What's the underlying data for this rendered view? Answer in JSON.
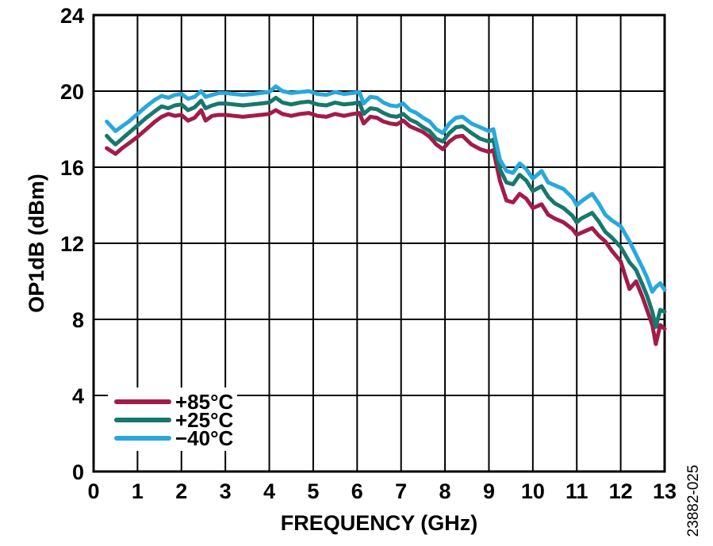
{
  "figure": {
    "background": "#ffffff",
    "watermark": "23882-025",
    "axis_color": "#000000",
    "grid_color": "#000000"
  },
  "chart_data": {
    "type": "line",
    "title": "",
    "xlabel": "FREQUENCY (GHz)",
    "ylabel": "OP1dB (dBm)",
    "xlim": [
      0,
      13
    ],
    "ylim": [
      0,
      24
    ],
    "x_ticks": [
      0,
      1,
      2,
      3,
      4,
      5,
      6,
      7,
      8,
      9,
      10,
      11,
      12,
      13
    ],
    "y_ticks": [
      0,
      4,
      8,
      12,
      16,
      20,
      24
    ],
    "grid": "on",
    "legend_position": "lower-left",
    "x": [
      0.3,
      0.4,
      0.5,
      0.65,
      0.8,
      1.0,
      1.2,
      1.4,
      1.55,
      1.7,
      1.85,
      2.0,
      2.15,
      2.3,
      2.45,
      2.55,
      2.7,
      2.85,
      3.0,
      3.2,
      3.4,
      3.6,
      3.8,
      4.0,
      4.15,
      4.3,
      4.5,
      4.7,
      4.9,
      5.1,
      5.3,
      5.5,
      5.7,
      5.9,
      6.05,
      6.15,
      6.3,
      6.45,
      6.6,
      6.75,
      6.9,
      7.05,
      7.2,
      7.35,
      7.5,
      7.65,
      7.8,
      7.95,
      8.1,
      8.25,
      8.4,
      8.6,
      8.8,
      9.0,
      9.1,
      9.25,
      9.4,
      9.55,
      9.7,
      9.85,
      10.0,
      10.2,
      10.35,
      10.5,
      10.7,
      10.9,
      11.0,
      11.1,
      11.35,
      11.5,
      11.65,
      11.8,
      12.0,
      12.1,
      12.2,
      12.35,
      12.5,
      12.6,
      12.72,
      12.8,
      12.9,
      13.0
    ],
    "series": [
      {
        "name": "+85°C",
        "color": "#A21C49",
        "values": [
          17.0,
          16.85,
          16.7,
          17.0,
          17.25,
          17.6,
          18.0,
          18.4,
          18.65,
          18.8,
          18.7,
          18.75,
          18.45,
          18.6,
          19.0,
          18.45,
          18.7,
          18.75,
          18.75,
          18.7,
          18.65,
          18.7,
          18.75,
          18.8,
          19.0,
          18.8,
          18.7,
          18.8,
          18.85,
          18.7,
          18.65,
          18.8,
          18.7,
          18.8,
          18.85,
          18.3,
          18.65,
          18.6,
          18.4,
          18.3,
          18.25,
          18.45,
          18.15,
          18.0,
          17.85,
          17.6,
          17.2,
          16.95,
          17.35,
          17.6,
          17.65,
          17.2,
          16.95,
          16.8,
          16.9,
          15.3,
          14.25,
          14.15,
          14.6,
          14.35,
          13.85,
          14.05,
          13.5,
          13.3,
          13.1,
          12.75,
          12.45,
          12.55,
          12.8,
          12.4,
          12.1,
          11.6,
          11.05,
          10.3,
          9.6,
          10.0,
          9.15,
          8.5,
          7.7,
          6.7,
          7.7,
          7.5
        ]
      },
      {
        "name": "+25°C",
        "color": "#17786D",
        "values": [
          17.65,
          17.4,
          17.2,
          17.5,
          17.8,
          18.2,
          18.6,
          18.95,
          19.2,
          19.1,
          19.25,
          19.3,
          19.0,
          19.15,
          19.5,
          19.1,
          19.25,
          19.35,
          19.35,
          19.3,
          19.25,
          19.3,
          19.35,
          19.4,
          19.65,
          19.4,
          19.3,
          19.4,
          19.45,
          19.3,
          19.25,
          19.4,
          19.3,
          19.35,
          19.4,
          18.8,
          19.1,
          19.05,
          18.85,
          18.7,
          18.65,
          18.8,
          18.5,
          18.35,
          18.1,
          17.9,
          17.5,
          17.35,
          17.8,
          18.1,
          18.15,
          17.8,
          17.5,
          17.35,
          17.45,
          15.9,
          15.2,
          15.1,
          15.6,
          15.3,
          14.75,
          15.0,
          14.45,
          14.1,
          13.85,
          13.45,
          13.1,
          13.3,
          13.6,
          13.15,
          12.6,
          12.3,
          11.8,
          11.4,
          11.0,
          10.6,
          9.8,
          9.25,
          8.4,
          7.6,
          8.5,
          8.4
        ]
      },
      {
        "name": "−40°C",
        "color": "#29A8DC",
        "values": [
          18.4,
          18.15,
          17.9,
          18.15,
          18.4,
          18.8,
          19.2,
          19.55,
          19.75,
          19.65,
          19.8,
          19.85,
          19.6,
          19.7,
          20.0,
          19.7,
          19.8,
          19.9,
          19.9,
          19.85,
          19.8,
          19.85,
          19.9,
          19.95,
          20.25,
          20.0,
          19.9,
          19.95,
          20.0,
          19.85,
          19.8,
          19.95,
          19.85,
          19.9,
          19.95,
          19.35,
          19.7,
          19.65,
          19.4,
          19.25,
          19.2,
          19.35,
          19.0,
          18.85,
          18.6,
          18.4,
          18.0,
          17.8,
          18.3,
          18.6,
          18.65,
          18.3,
          18.1,
          17.9,
          18.0,
          16.4,
          15.8,
          15.7,
          16.2,
          15.9,
          15.4,
          15.8,
          15.2,
          15.05,
          14.85,
          14.4,
          14.0,
          14.2,
          14.6,
          14.1,
          13.5,
          13.2,
          12.9,
          12.5,
          12.1,
          11.4,
          10.7,
          10.2,
          9.45,
          9.7,
          9.9,
          9.55
        ]
      }
    ]
  }
}
